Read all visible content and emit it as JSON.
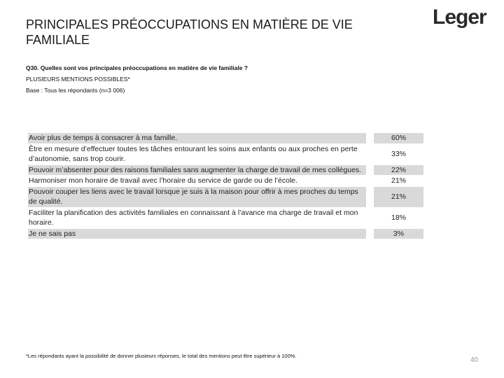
{
  "header": {
    "title": "PRINCIPALES PRÉOCCUPATIONS EN MATIÈRE DE VIE FAMILIALE",
    "logo": "Leger"
  },
  "question": [
    "Q30. Quelles sont vos principales préoccupations en matière de vie familiale ?",
    "PLUSIEURS MENTIONS POSSIBLES*",
    "Base : Tous les répondants (n=3 006)"
  ],
  "table": {
    "rows": [
      [
        "Avoir plus de temps à consacrer à ma famille.",
        "60%"
      ],
      [
        "Être en mesure d’effectuer toutes les tâches entourant les soins aux enfants ou aux proches en perte d’autonomie, sans trop courir.",
        "33%"
      ],
      [
        "Pouvoir m’absenter pour des raisons familiales sans augmenter la charge de travail de mes collègues.",
        "22%"
      ],
      [
        "Harmoniser mon horaire de travail avec l’horaire du service de garde ou de l’école.",
        "21%"
      ],
      [
        "Pouvoir couper les liens avec le travail lorsque je suis à la maison pour offrir à mes proches du temps de qualité.",
        "21%"
      ],
      [
        "Faciliter la planification des activités familiales en connaissant à l’avance ma charge de travail et mon horaire.",
        "18%"
      ],
      [
        "Je ne sais pas",
        "3%"
      ]
    ]
  },
  "footnote": "*Les répondants ayant la possibilité de donner plusieurs réponses, le total des mentions peut être supérieur à 100%.",
  "page_number": "40"
}
